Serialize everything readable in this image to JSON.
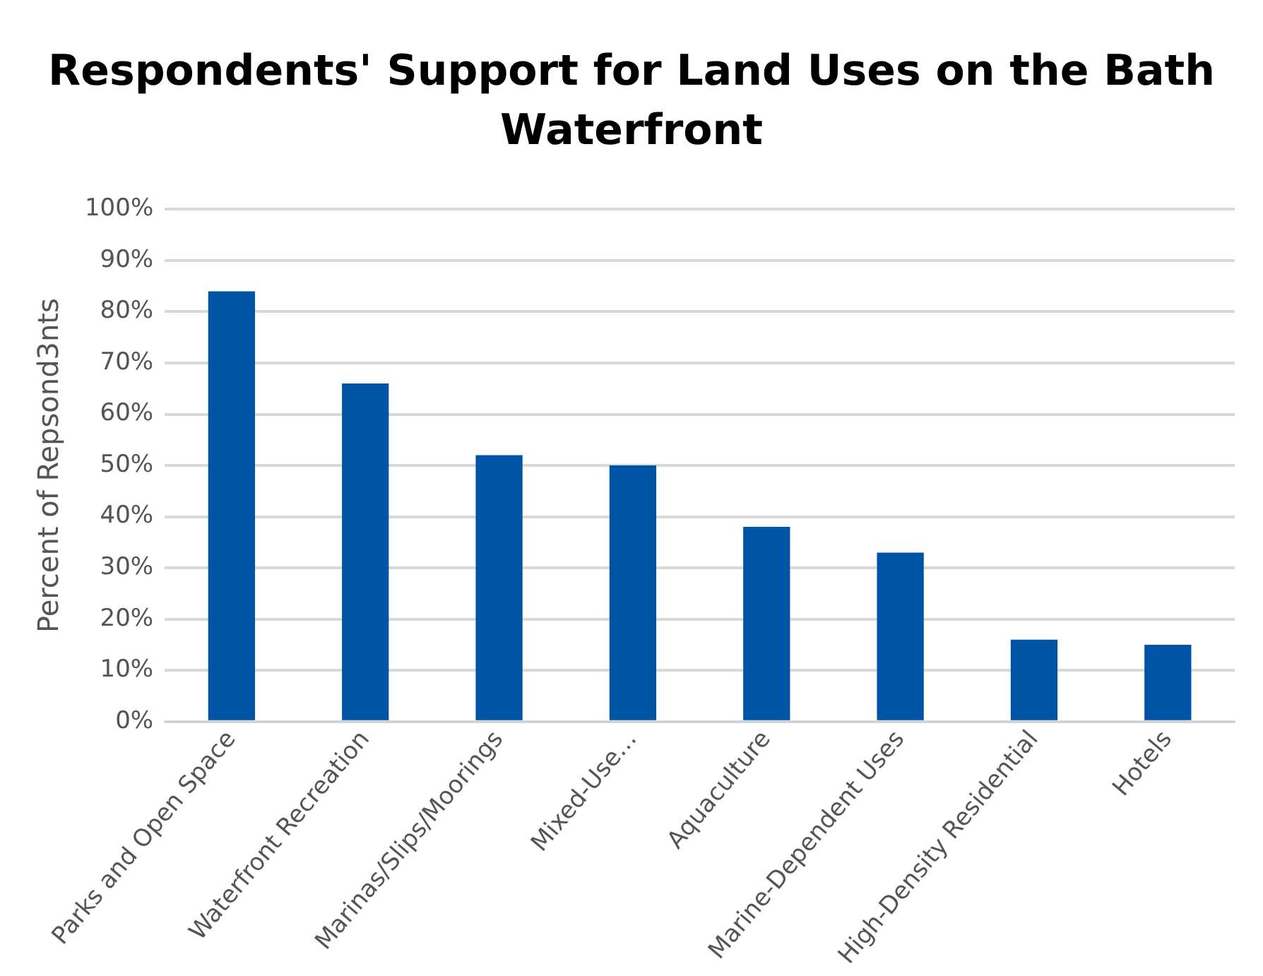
{
  "chart_data": {
    "type": "bar",
    "title": "Respondents' Support for Land Uses on the Bath Waterfront",
    "ylabel": "Percent of Repsond3nts",
    "categories": [
      "Parks and Open Space",
      "Waterfront Recreation",
      "Marinas/Slips/Moorings",
      "Mixed-Use…",
      "Aquaculture",
      "Marine-Dependent Uses",
      "High-Density Residential",
      "Hotels"
    ],
    "values": [
      84,
      66,
      52,
      50,
      38,
      33,
      16,
      15
    ],
    "color": "#0054a6",
    "ylim": [
      0,
      100
    ],
    "yticks": [
      {
        "value": 0,
        "label": "0%"
      },
      {
        "value": 10,
        "label": "10%"
      },
      {
        "value": 20,
        "label": "20%"
      },
      {
        "value": 30,
        "label": "30%"
      },
      {
        "value": 40,
        "label": "40%"
      },
      {
        "value": 50,
        "label": "50%"
      },
      {
        "value": 60,
        "label": "60%"
      },
      {
        "value": 70,
        "label": "70%"
      },
      {
        "value": 80,
        "label": "80%"
      },
      {
        "value": 90,
        "label": "90%"
      },
      {
        "value": 100,
        "label": "100%"
      }
    ],
    "grid": "y",
    "legend": false
  }
}
